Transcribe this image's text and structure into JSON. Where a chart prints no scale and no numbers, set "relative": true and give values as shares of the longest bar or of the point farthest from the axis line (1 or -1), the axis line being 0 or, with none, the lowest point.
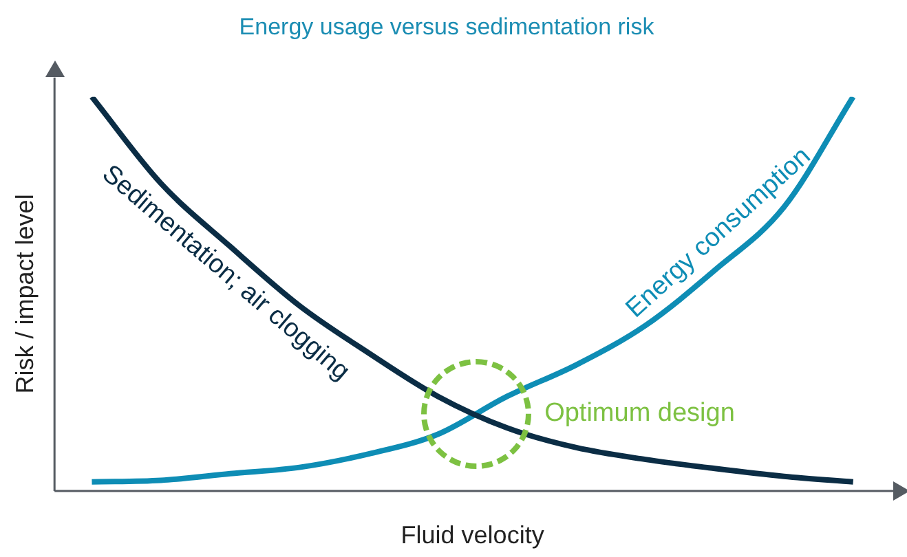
{
  "chart_data": {
    "type": "line",
    "title": "Energy usage versus sedimentation risk",
    "xlabel": "Fluid velocity",
    "ylabel": "Risk / impact level",
    "relative": true,
    "categories": [
      null,
      null,
      null,
      null,
      null,
      null,
      null,
      null,
      null,
      null,
      null,
      null
    ],
    "series": [
      {
        "name": "Sedimentation; air clogging",
        "color": "#0b2d45",
        "values": [
          1.0,
          0.78,
          0.62,
          0.47,
          0.35,
          0.24,
          0.16,
          0.11,
          0.08,
          0.057,
          0.037,
          0.023
        ]
      },
      {
        "name": "Energy consumption",
        "color": "#0e8db5",
        "values": [
          0.023,
          0.027,
          0.044,
          0.06,
          0.094,
          0.144,
          0.24,
          0.32,
          0.42,
          0.56,
          0.72,
          1.0
        ]
      }
    ],
    "annotations": [
      "Optimum design"
    ],
    "grid": false,
    "legend": false,
    "marker": "none",
    "line_style": "solid"
  }
}
